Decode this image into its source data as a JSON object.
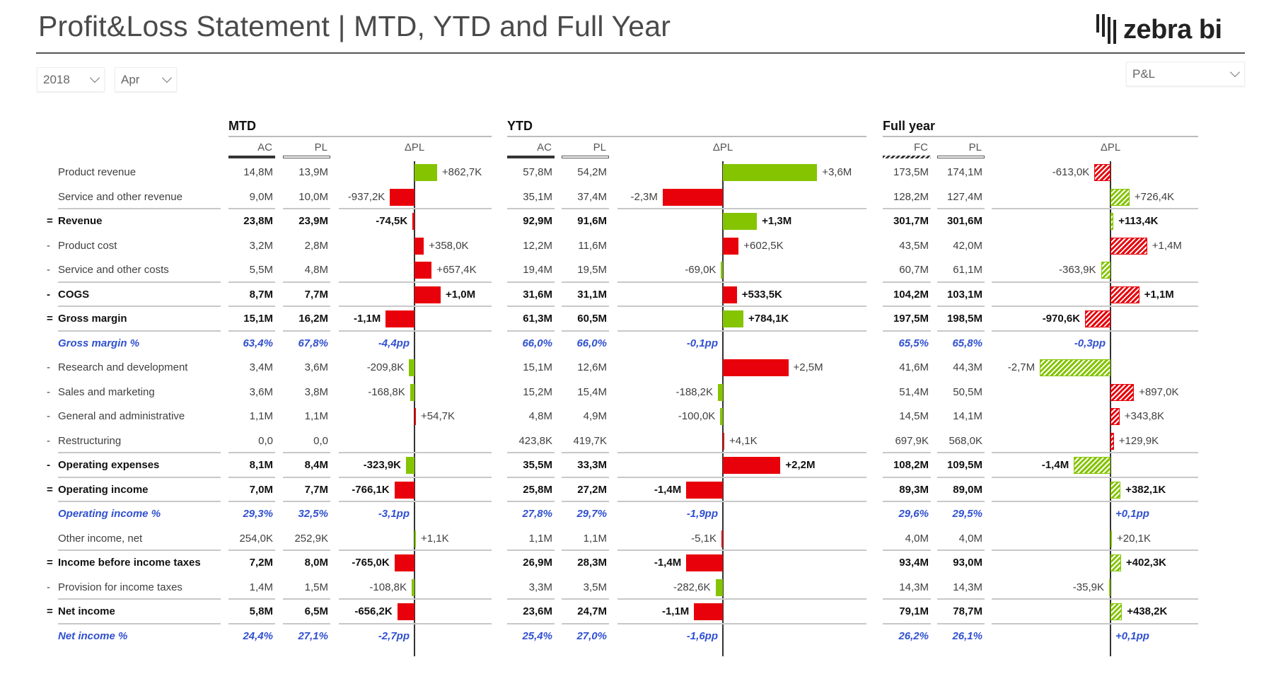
{
  "header": {
    "title": "Profit&Loss Statement | MTD, YTD and Full Year",
    "logo_text": "zebra bi"
  },
  "filters": {
    "year": "2018",
    "month": "Apr",
    "report": "P&L"
  },
  "colors": {
    "good": "#84c400",
    "bad": "#e8000b",
    "percent_text": "#3050d0"
  },
  "sections": [
    {
      "title": "MTD",
      "columns": [
        "AC",
        "PL",
        "ΔPL"
      ],
      "first_column_style": "solid"
    },
    {
      "title": "YTD",
      "columns": [
        "AC",
        "PL",
        "ΔPL"
      ],
      "first_column_style": "solid"
    },
    {
      "title": "Full year",
      "columns": [
        "FC",
        "PL",
        "ΔPL"
      ],
      "first_column_style": "hatched"
    }
  ],
  "rows": [
    {
      "prefix": "",
      "label": "Product revenue",
      "style": "normal",
      "values": [
        [
          "14,8M",
          "13,9M",
          "+862,7K",
          0.8627,
          true
        ],
        [
          "57,8M",
          "54,2M",
          "+3,6M",
          3.6,
          true
        ],
        [
          "173,5M",
          "174,1M",
          "-613,0K",
          -0.613,
          false
        ]
      ]
    },
    {
      "prefix": "",
      "label": "Service and other revenue",
      "style": "normal",
      "separator": true,
      "values": [
        [
          "9,0M",
          "10,0M",
          "-937,2K",
          -0.9372,
          false
        ],
        [
          "35,1M",
          "37,4M",
          "-2,3M",
          -2.3,
          false
        ],
        [
          "128,2M",
          "127,4M",
          "+726,4K",
          0.7264,
          true
        ]
      ]
    },
    {
      "prefix": "=",
      "label": "Revenue",
      "style": "bold",
      "values": [
        [
          "23,8M",
          "23,9M",
          "-74,5K",
          -0.0745,
          false
        ],
        [
          "92,9M",
          "91,6M",
          "+1,3M",
          1.3,
          true
        ],
        [
          "301,7M",
          "301,6M",
          "+113,4K",
          0.1134,
          true
        ]
      ]
    },
    {
      "prefix": "-",
      "label": "Product cost",
      "style": "normal",
      "values": [
        [
          "3,2M",
          "2,8M",
          "+358,0K",
          0.358,
          false
        ],
        [
          "12,2M",
          "11,6M",
          "+602,5K",
          0.6025,
          false
        ],
        [
          "43,5M",
          "42,0M",
          "+1,4M",
          1.4,
          false
        ]
      ]
    },
    {
      "prefix": "-",
      "label": "Service and other costs",
      "style": "normal",
      "separator": true,
      "values": [
        [
          "5,5M",
          "4,8M",
          "+657,4K",
          0.6574,
          false
        ],
        [
          "19,4M",
          "19,5M",
          "-69,0K",
          -0.069,
          true
        ],
        [
          "60,7M",
          "61,1M",
          "-363,9K",
          -0.3639,
          true
        ]
      ]
    },
    {
      "prefix": "-",
      "label": "COGS",
      "style": "bold",
      "separator": true,
      "values": [
        [
          "8,7M",
          "7,7M",
          "+1,0M",
          1.0,
          false
        ],
        [
          "31,6M",
          "31,1M",
          "+533,5K",
          0.5335,
          false
        ],
        [
          "104,2M",
          "103,1M",
          "+1,1M",
          1.1,
          false
        ]
      ]
    },
    {
      "prefix": "=",
      "label": "Gross margin",
      "style": "bold",
      "separator": true,
      "values": [
        [
          "15,1M",
          "16,2M",
          "-1,1M",
          -1.1,
          false
        ],
        [
          "61,3M",
          "60,5M",
          "+784,1K",
          0.7841,
          true
        ],
        [
          "197,5M",
          "198,5M",
          "-970,6K",
          -0.9706,
          false
        ]
      ]
    },
    {
      "prefix": "",
      "label": "Gross margin %",
      "style": "pct",
      "values": [
        [
          "63,4%",
          "67,8%",
          "-4,4pp",
          -4.4,
          null
        ],
        [
          "66,0%",
          "66,0%",
          "-0,1pp",
          -0.1,
          null
        ],
        [
          "65,5%",
          "65,8%",
          "-0,3pp",
          -0.3,
          null
        ]
      ]
    },
    {
      "prefix": "-",
      "label": "Research and development",
      "style": "normal",
      "values": [
        [
          "3,4M",
          "3,6M",
          "-209,8K",
          -0.2098,
          true
        ],
        [
          "15,1M",
          "12,6M",
          "+2,5M",
          2.5,
          false
        ],
        [
          "41,6M",
          "44,3M",
          "-2,7M",
          -2.7,
          true
        ]
      ]
    },
    {
      "prefix": "-",
      "label": "Sales and marketing",
      "style": "normal",
      "values": [
        [
          "3,6M",
          "3,8M",
          "-168,8K",
          -0.1688,
          true
        ],
        [
          "15,2M",
          "15,4M",
          "-188,2K",
          -0.1882,
          true
        ],
        [
          "51,4M",
          "50,5M",
          "+897,0K",
          0.897,
          false
        ]
      ]
    },
    {
      "prefix": "-",
      "label": "General and administrative",
      "style": "normal",
      "values": [
        [
          "1,1M",
          "1,1M",
          "+54,7K",
          0.0547,
          false
        ],
        [
          "4,8M",
          "4,9M",
          "-100,0K",
          -0.1,
          true
        ],
        [
          "14,5M",
          "14,1M",
          "+343,8K",
          0.3438,
          false
        ]
      ]
    },
    {
      "prefix": "-",
      "label": "Restructuring",
      "style": "normal",
      "separator": true,
      "values": [
        [
          "0,0",
          "0,0",
          "",
          0,
          null
        ],
        [
          "423,8K",
          "419,7K",
          "+4,1K",
          0.0041,
          false
        ],
        [
          "697,9K",
          "568,0K",
          "+129,9K",
          0.1299,
          false
        ]
      ]
    },
    {
      "prefix": "-",
      "label": "Operating expenses",
      "style": "bold",
      "separator": true,
      "values": [
        [
          "8,1M",
          "8,4M",
          "-323,9K",
          -0.3239,
          true
        ],
        [
          "35,5M",
          "33,3M",
          "+2,2M",
          2.2,
          false
        ],
        [
          "108,2M",
          "109,5M",
          "-1,4M",
          -1.4,
          true
        ]
      ]
    },
    {
      "prefix": "=",
      "label": "Operating income",
      "style": "bold",
      "separator": true,
      "values": [
        [
          "7,0M",
          "7,7M",
          "-766,1K",
          -0.7661,
          false
        ],
        [
          "25,8M",
          "27,2M",
          "-1,4M",
          -1.4,
          false
        ],
        [
          "89,3M",
          "89,0M",
          "+382,1K",
          0.3821,
          true
        ]
      ]
    },
    {
      "prefix": "",
      "label": "Operating income %",
      "style": "pct",
      "values": [
        [
          "29,3%",
          "32,5%",
          "-3,1pp",
          -3.1,
          null
        ],
        [
          "27,8%",
          "29,7%",
          "-1,9pp",
          -1.9,
          null
        ],
        [
          "29,6%",
          "29,5%",
          "+0,1pp",
          0.1,
          null
        ]
      ]
    },
    {
      "prefix": "",
      "label": "Other income, net",
      "style": "normal",
      "separator": true,
      "values": [
        [
          "254,0K",
          "252,9K",
          "+1,1K",
          0.0011,
          true
        ],
        [
          "1,1M",
          "1,1M",
          "-5,1K",
          -0.0051,
          false
        ],
        [
          "4,0M",
          "4,0M",
          "+20,1K",
          0.0201,
          true
        ]
      ]
    },
    {
      "prefix": "=",
      "label": "Income before income taxes",
      "style": "bold",
      "values": [
        [
          "7,2M",
          "8,0M",
          "-765,0K",
          -0.765,
          false
        ],
        [
          "26,9M",
          "28,3M",
          "-1,4M",
          -1.4,
          false
        ],
        [
          "93,4M",
          "93,0M",
          "+402,3K",
          0.4023,
          true
        ]
      ]
    },
    {
      "prefix": "-",
      "label": "Provision for income taxes",
      "style": "normal",
      "separator": true,
      "values": [
        [
          "1,4M",
          "1,5M",
          "-108,8K",
          -0.1088,
          true
        ],
        [
          "3,3M",
          "3,5M",
          "-282,6K",
          -0.2826,
          true
        ],
        [
          "14,3M",
          "14,3M",
          "-35,9K",
          -0.0359,
          true
        ]
      ]
    },
    {
      "prefix": "=",
      "label": "Net income",
      "style": "bold",
      "separator": true,
      "values": [
        [
          "5,8M",
          "6,5M",
          "-656,2K",
          -0.6562,
          false
        ],
        [
          "23,6M",
          "24,7M",
          "-1,1M",
          -1.1,
          false
        ],
        [
          "79,1M",
          "78,7M",
          "+438,2K",
          0.4382,
          true
        ]
      ]
    },
    {
      "prefix": "",
      "label": "Net income %",
      "style": "pct",
      "values": [
        [
          "24,4%",
          "27,1%",
          "-2,7pp",
          -2.7,
          null
        ],
        [
          "25,4%",
          "27,0%",
          "-1,6pp",
          -1.6,
          null
        ],
        [
          "26,2%",
          "26,1%",
          "+0,1pp",
          0.1,
          null
        ]
      ]
    }
  ]
}
